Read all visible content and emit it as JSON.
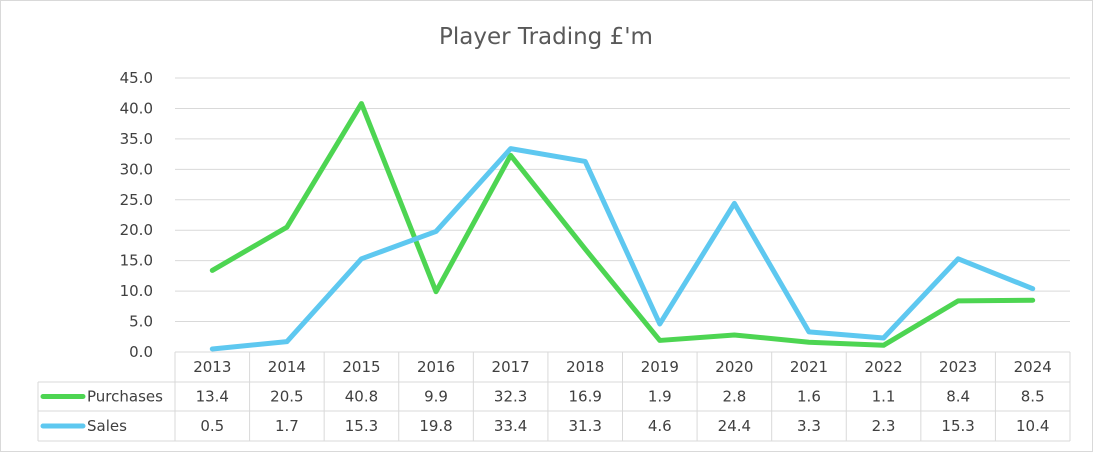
{
  "chart_data": {
    "type": "line",
    "title": "Player Trading £'m",
    "categories": [
      "2013",
      "2014",
      "2015",
      "2016",
      "2017",
      "2018",
      "2019",
      "2020",
      "2021",
      "2022",
      "2023",
      "2024"
    ],
    "y_ticks": [
      "0.0",
      "5.0",
      "10.0",
      "15.0",
      "20.0",
      "25.0",
      "30.0",
      "35.0",
      "40.0",
      "45.0"
    ],
    "ylim": [
      0,
      45
    ],
    "grid": true,
    "legend": "data-table",
    "series": [
      {
        "name": "Purchases",
        "color": "#4dd552",
        "values": [
          13.4,
          20.5,
          40.8,
          9.9,
          32.3,
          16.9,
          1.9,
          2.8,
          1.6,
          1.1,
          8.4,
          8.5
        ],
        "labels": [
          "13.4",
          "20.5",
          "40.8",
          "9.9",
          "32.3",
          "16.9",
          "1.9",
          "2.8",
          "1.6",
          "1.1",
          "8.4",
          "8.5"
        ]
      },
      {
        "name": "Sales",
        "color": "#5ec8f0",
        "values": [
          0.5,
          1.7,
          15.3,
          19.8,
          33.4,
          31.3,
          4.6,
          24.4,
          3.3,
          2.3,
          15.3,
          10.4
        ],
        "labels": [
          "0.5",
          "1.7",
          "15.3",
          "19.8",
          "33.4",
          "31.3",
          "4.6",
          "24.4",
          "3.3",
          "2.3",
          "15.3",
          "10.4"
        ]
      }
    ]
  }
}
